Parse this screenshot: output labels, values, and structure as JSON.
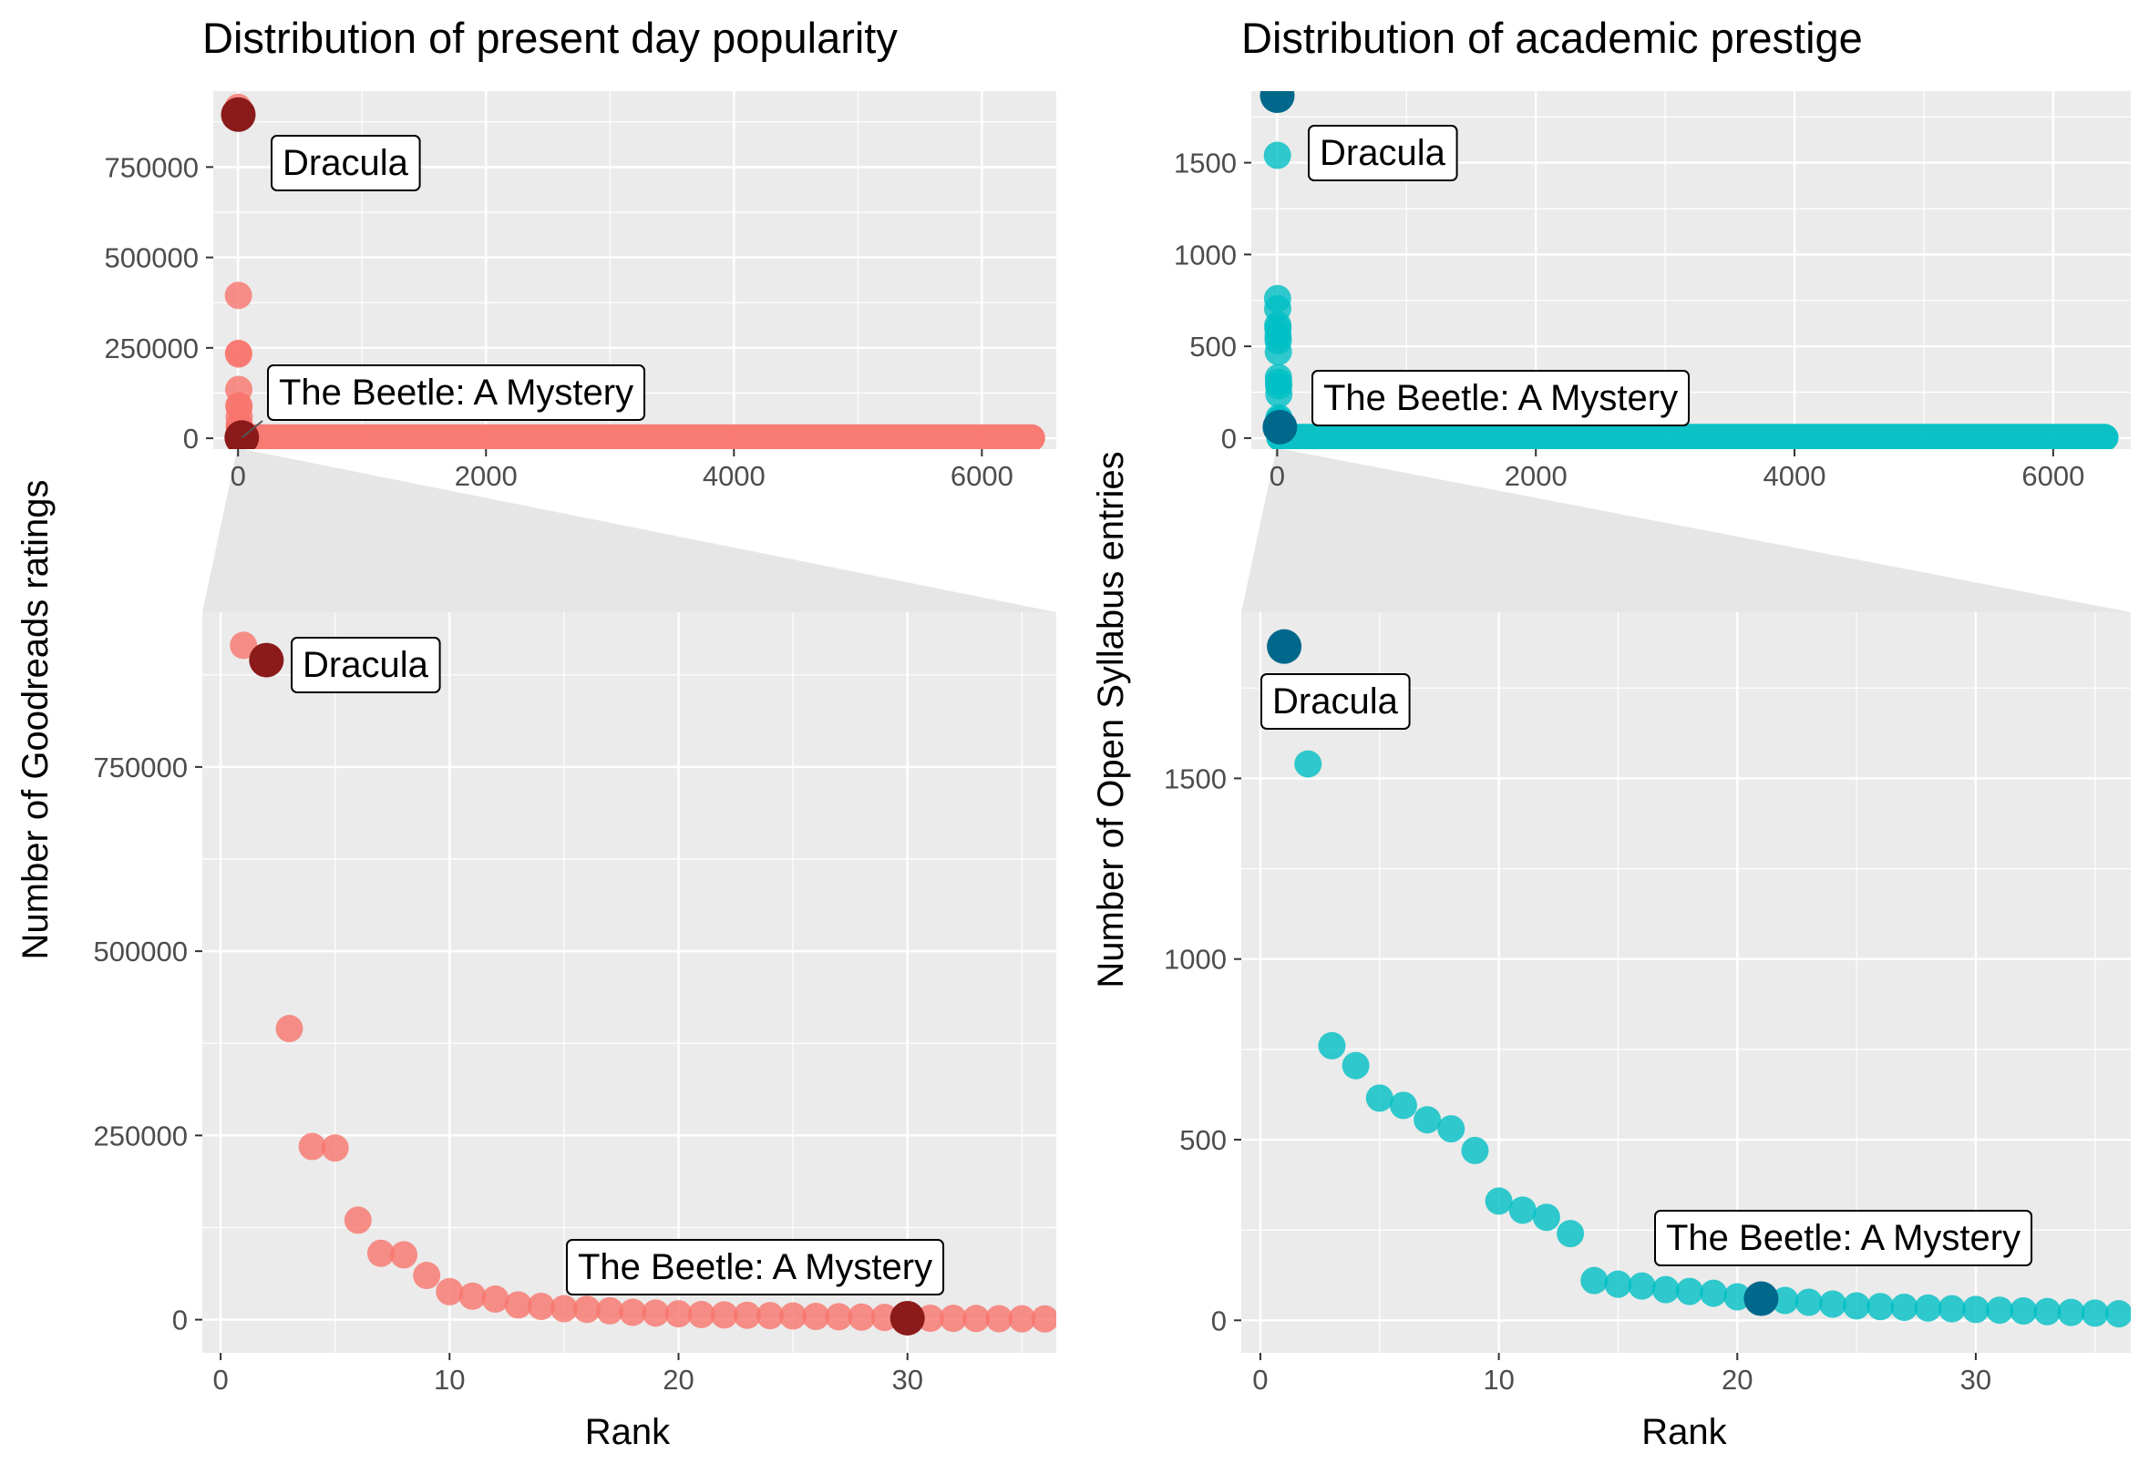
{
  "colors": {
    "panel_bg": "#EBEBEB",
    "grid": "#FFFFFF",
    "zoom_band": "#E6E6E6",
    "popularity_point": "#F8766D",
    "popularity_highlight": "#8B1A1A",
    "prestige_point": "#00BFC4",
    "prestige_highlight": "#00688B",
    "text": "#000000",
    "tick_text": "#4D4D4D"
  },
  "chart_data": [
    {
      "id": "popularity_full",
      "type": "scatter",
      "title": "Distribution of present day popularity",
      "xlim": [
        -200,
        6600
      ],
      "ylim": [
        -30000,
        960000
      ],
      "xticks": [
        0,
        2000,
        4000,
        6000
      ],
      "yticks": [
        0,
        250000,
        500000,
        750000
      ],
      "tail": {
        "x_from": 30,
        "x_to": 6400,
        "value": 1000
      },
      "points": [
        [
          1,
          915000
        ],
        [
          2,
          895000
        ],
        [
          3,
          395000
        ],
        [
          4,
          235000
        ],
        [
          5,
          233000
        ],
        [
          6,
          135000
        ],
        [
          7,
          90000
        ],
        [
          8,
          88000
        ],
        [
          9,
          60000
        ],
        [
          10,
          38000
        ],
        [
          11,
          32000
        ],
        [
          12,
          28000
        ],
        [
          13,
          20000
        ],
        [
          14,
          18000
        ],
        [
          15,
          15000
        ],
        [
          16,
          14000
        ],
        [
          17,
          12000
        ],
        [
          18,
          10000
        ],
        [
          19,
          9000
        ],
        [
          20,
          8000
        ]
      ],
      "highlights": [
        {
          "label": "Dracula",
          "x": 2,
          "y": 895000
        },
        {
          "label": "The Beetle: A Mystery",
          "x": 30,
          "y": 2000
        }
      ]
    },
    {
      "id": "prestige_full",
      "type": "scatter",
      "title": "Distribution of academic prestige",
      "xlim": [
        -200,
        6600
      ],
      "ylim": [
        -60,
        1890
      ],
      "xticks": [
        0,
        2000,
        4000,
        6000
      ],
      "yticks": [
        0,
        500,
        1000,
        1500
      ],
      "tail": {
        "x_from": 21,
        "x_to": 6400,
        "value": 3
      },
      "points": [
        [
          1,
          1865
        ],
        [
          2,
          1540
        ],
        [
          3,
          760
        ],
        [
          4,
          705
        ],
        [
          5,
          615
        ],
        [
          6,
          595
        ],
        [
          7,
          555
        ],
        [
          8,
          530
        ],
        [
          9,
          470
        ],
        [
          10,
          330
        ],
        [
          11,
          305
        ],
        [
          12,
          285
        ],
        [
          13,
          240
        ],
        [
          14,
          110
        ],
        [
          15,
          100
        ],
        [
          16,
          95
        ],
        [
          17,
          85
        ],
        [
          18,
          80
        ],
        [
          19,
          75
        ],
        [
          20,
          65
        ]
      ],
      "highlights": [
        {
          "label": "Dracula",
          "x": 1,
          "y": 1865
        },
        {
          "label": "The Beetle: A Mystery",
          "x": 21,
          "y": 60
        }
      ]
    },
    {
      "id": "popularity_zoom",
      "type": "scatter",
      "xlabel": "Rank",
      "ylabel": "Number of Goodreads ratings",
      "xlim": [
        -0.8,
        36.5
      ],
      "ylim": [
        -45000,
        960000
      ],
      "xticks": [
        0,
        10,
        20,
        30
      ],
      "yticks": [
        0,
        250000,
        500000,
        750000
      ],
      "points": [
        [
          1,
          915000
        ],
        [
          3,
          395000
        ],
        [
          4,
          235000
        ],
        [
          5,
          233000
        ],
        [
          6,
          135000
        ],
        [
          7,
          90000
        ],
        [
          8,
          88000
        ],
        [
          9,
          60000
        ],
        [
          10,
          38000
        ],
        [
          11,
          32000
        ],
        [
          12,
          28000
        ],
        [
          13,
          20000
        ],
        [
          14,
          18000
        ],
        [
          15,
          15000
        ],
        [
          16,
          14000
        ],
        [
          17,
          12000
        ],
        [
          18,
          10000
        ],
        [
          19,
          9000
        ],
        [
          20,
          8000
        ],
        [
          21,
          7000
        ],
        [
          22,
          6500
        ],
        [
          23,
          6000
        ],
        [
          24,
          5500
        ],
        [
          25,
          5000
        ],
        [
          26,
          4500
        ],
        [
          27,
          4000
        ],
        [
          28,
          3500
        ],
        [
          29,
          3000
        ],
        [
          31,
          2000
        ],
        [
          32,
          1800
        ],
        [
          33,
          1600
        ],
        [
          34,
          1400
        ],
        [
          35,
          1200
        ],
        [
          36,
          1000
        ]
      ],
      "highlights": [
        {
          "label": "Dracula",
          "x": 2,
          "y": 895000
        },
        {
          "label": "The Beetle: A Mystery",
          "x": 30,
          "y": 2000
        }
      ]
    },
    {
      "id": "prestige_zoom",
      "type": "scatter",
      "xlabel": "Rank",
      "ylabel": "Number of Open Syllabus entries",
      "xlim": [
        -0.8,
        36.5
      ],
      "ylim": [
        -90,
        1960
      ],
      "xticks": [
        0,
        10,
        20,
        30
      ],
      "yticks": [
        0,
        500,
        1000,
        1500
      ],
      "points": [
        [
          2,
          1540
        ],
        [
          3,
          760
        ],
        [
          4,
          705
        ],
        [
          5,
          615
        ],
        [
          6,
          595
        ],
        [
          7,
          555
        ],
        [
          8,
          530
        ],
        [
          9,
          470
        ],
        [
          10,
          330
        ],
        [
          11,
          305
        ],
        [
          12,
          285
        ],
        [
          13,
          240
        ],
        [
          14,
          110
        ],
        [
          15,
          100
        ],
        [
          16,
          95
        ],
        [
          17,
          85
        ],
        [
          18,
          80
        ],
        [
          19,
          75
        ],
        [
          20,
          65
        ],
        [
          22,
          55
        ],
        [
          23,
          50
        ],
        [
          24,
          45
        ],
        [
          25,
          40
        ],
        [
          26,
          38
        ],
        [
          27,
          36
        ],
        [
          28,
          34
        ],
        [
          29,
          32
        ],
        [
          30,
          30
        ],
        [
          31,
          28
        ],
        [
          32,
          26
        ],
        [
          33,
          24
        ],
        [
          34,
          22
        ],
        [
          35,
          20
        ],
        [
          36,
          18
        ]
      ],
      "highlights": [
        {
          "label": "Dracula",
          "x": 1,
          "y": 1865
        },
        {
          "label": "The Beetle: A Mystery",
          "x": 21,
          "y": 60
        }
      ]
    }
  ]
}
